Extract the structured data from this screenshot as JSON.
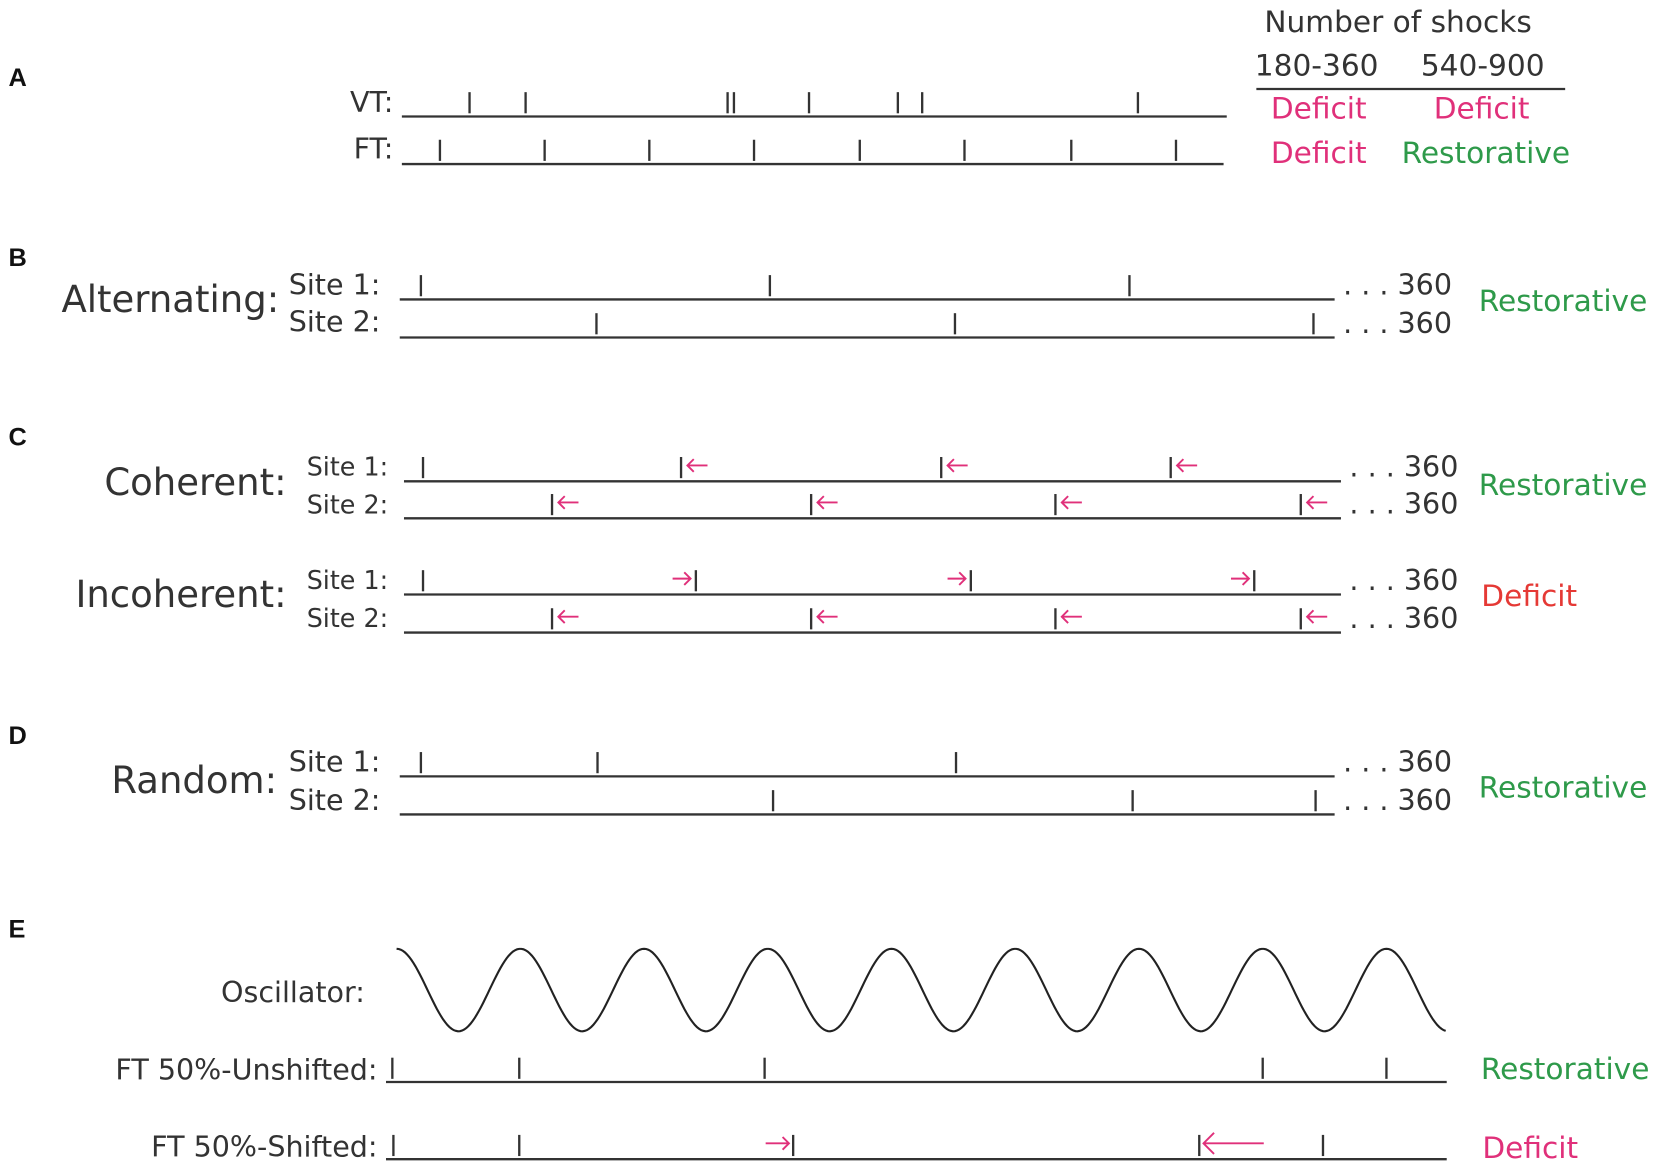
{
  "panel_a": {
    "letter": "A",
    "header": "Number of shocks",
    "columns": [
      "180-360",
      "540-900"
    ],
    "rows": [
      {
        "label": "VT:",
        "outcomes": [
          "Deficit",
          "Deficit"
        ]
      },
      {
        "label": "FT:",
        "outcomes": [
          "Deficit",
          "Restorative"
        ]
      }
    ]
  },
  "panel_b": {
    "letter": "B",
    "name": "Alternating:",
    "sites": [
      {
        "label": "Site 1:",
        "end": ". . . 360"
      },
      {
        "label": "Site 2:",
        "end": ". . . 360"
      }
    ],
    "outcome": "Restorative"
  },
  "panel_c": {
    "letter": "C",
    "groups": [
      {
        "name": "Coherent:",
        "sites": [
          {
            "label": "Site 1:",
            "end": ". . . 360"
          },
          {
            "label": "Site 2:",
            "end": ". . . 360"
          }
        ],
        "outcome": "Restorative"
      },
      {
        "name": "Incoherent:",
        "sites": [
          {
            "label": "Site 1:",
            "end": ". . . 360"
          },
          {
            "label": "Site 2:",
            "end": ". . . 360"
          }
        ],
        "outcome": "Deficit"
      }
    ]
  },
  "panel_d": {
    "letter": "D",
    "name": "Random:",
    "sites": [
      {
        "label": "Site 1:",
        "end": ". . . 360"
      },
      {
        "label": "Site 2:",
        "end": ". . . 360"
      }
    ],
    "outcome": "Restorative"
  },
  "panel_e": {
    "letter": "E",
    "oscillator": "Oscillator:",
    "rows": [
      {
        "label": "FT 50%-Unshifted:",
        "outcome": "Restorative"
      },
      {
        "label": "FT 50%-Shifted:",
        "outcome": "Deficit"
      }
    ]
  }
}
